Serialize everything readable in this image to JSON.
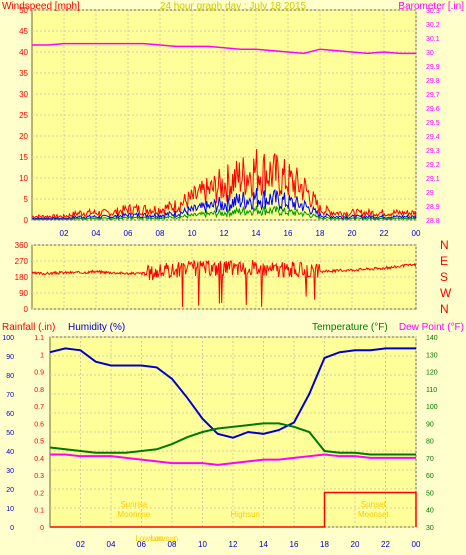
{
  "colors": {
    "background": "#ffffcc",
    "plot_bg": "#ffff99",
    "frame": "#6b6b3a",
    "grid": "#d8c8a8",
    "windspeed": "#ff0000",
    "barometer": "#ff00ff",
    "title": "#cccc00",
    "humidity": "#0000cc",
    "temperature": "#007700",
    "dewpoint": "#ff00ff",
    "rainfall": "#ff0000",
    "annotation": "#ffcc00"
  },
  "chart_data": [
    {
      "type": "line",
      "title": "24 hour graph day : July 18 2015",
      "ylabel_left": "Windspeed [mph]",
      "ylabel_right": "Barometer [.in]",
      "ylim_left": [
        0,
        50
      ],
      "yticks_left": [
        "0",
        "5",
        "10",
        "15",
        "20",
        "25",
        "30",
        "35",
        "40",
        "45",
        "50"
      ],
      "ylim_right": [
        28.8,
        30.3
      ],
      "yticks_right": [
        "28.8",
        "28.9",
        "29",
        "29.1",
        "29.2",
        "29.3",
        "29.4",
        "29.5",
        "29.6",
        "29.7",
        "29.8",
        "29.9",
        "30",
        "30.1",
        "30.2",
        "30.3"
      ],
      "xticks": [
        "02",
        "04",
        "06",
        "08",
        "10",
        "12",
        "14",
        "16",
        "18",
        "20",
        "22",
        "00"
      ],
      "x_hours": [
        0,
        1,
        2,
        3,
        4,
        5,
        6,
        7,
        8,
        9,
        10,
        11,
        12,
        13,
        14,
        15,
        16,
        17,
        18,
        19,
        20,
        21,
        22,
        23,
        24
      ],
      "series": [
        {
          "name": "Windspeed",
          "values": [
            1,
            1,
            1,
            2,
            2,
            2,
            3,
            3,
            3,
            4,
            6,
            8,
            10,
            12,
            14,
            13,
            11,
            9,
            3,
            2,
            2,
            2,
            2,
            2,
            2
          ]
        },
        {
          "name": "Barometer",
          "values": [
            30.05,
            30.05,
            30.06,
            30.06,
            30.06,
            30.06,
            30.06,
            30.06,
            30.05,
            30.04,
            30.04,
            30.04,
            30.03,
            30.02,
            30.02,
            30.01,
            30.0,
            29.99,
            30.02,
            30.01,
            30.0,
            29.99,
            30.0,
            29.99,
            29.99
          ]
        }
      ],
      "grid": true
    },
    {
      "type": "scatter",
      "series_name": "Wind Direction",
      "ylim": [
        0,
        360
      ],
      "yticks": [
        "0",
        "90",
        "180",
        "270",
        "360"
      ],
      "compass": [
        "N",
        "W",
        "S",
        "E",
        "N"
      ],
      "x_hours": [
        0,
        1,
        2,
        3,
        4,
        5,
        6,
        7,
        8,
        9,
        10,
        11,
        12,
        13,
        14,
        15,
        16,
        17,
        18,
        19,
        20,
        21,
        22,
        23,
        24
      ],
      "values": [
        200,
        200,
        205,
        205,
        210,
        205,
        200,
        200,
        210,
        220,
        230,
        230,
        230,
        230,
        230,
        225,
        220,
        220,
        210,
        215,
        220,
        225,
        230,
        240,
        250
      ],
      "grid": true
    },
    {
      "type": "line",
      "ylabel_left_1": "Rainfall (.in)",
      "ylabel_left_2": "Humidity (%)",
      "ylabel_right_1": "Temperature (°F)",
      "ylabel_right_2": "Dew Point (°F)",
      "ylim_rain": [
        0,
        1.1
      ],
      "yticks_rain": [
        "0",
        "0.1",
        "0.2",
        "0.3",
        "0.4",
        "0.5",
        "0.6",
        "0.7",
        "0.8",
        "0.9",
        "1",
        "1.1"
      ],
      "ylim_humidity": [
        0,
        100
      ],
      "yticks_humidity": [
        "0",
        "10",
        "20",
        "30",
        "40",
        "50",
        "60",
        "70",
        "80",
        "90",
        "100"
      ],
      "ylim_temp": [
        30,
        140
      ],
      "yticks_temp": [
        "30",
        "40",
        "50",
        "60",
        "70",
        "80",
        "90",
        "100",
        "110",
        "120",
        "130",
        "140"
      ],
      "xticks": [
        "02",
        "04",
        "06",
        "08",
        "10",
        "12",
        "14",
        "16",
        "18",
        "20",
        "22",
        "00"
      ],
      "x_hours": [
        0,
        1,
        2,
        3,
        4,
        5,
        6,
        7,
        8,
        9,
        10,
        11,
        12,
        13,
        14,
        15,
        16,
        17,
        18,
        19,
        20,
        21,
        22,
        23,
        24
      ],
      "series": [
        {
          "name": "Humidity",
          "values": [
            92,
            94,
            93,
            87,
            85,
            85,
            85,
            84,
            78,
            68,
            57,
            49,
            47,
            50,
            49,
            51,
            55,
            70,
            89,
            92,
            93,
            93,
            94,
            94,
            94
          ]
        },
        {
          "name": "Temperature",
          "values": [
            76,
            75,
            74,
            73,
            73,
            73,
            74,
            75,
            78,
            82,
            85,
            87,
            88,
            89,
            90,
            90,
            88,
            85,
            74,
            73,
            73,
            72,
            72,
            72,
            72
          ]
        },
        {
          "name": "Dew Point",
          "values": [
            72,
            72,
            71,
            71,
            71,
            70,
            69,
            68,
            67,
            67,
            67,
            66,
            67,
            68,
            69,
            69,
            70,
            71,
            72,
            71,
            71,
            70,
            70,
            70,
            70
          ]
        },
        {
          "name": "Rainfall",
          "values": [
            0,
            0,
            0,
            0,
            0,
            0,
            0,
            0,
            0,
            0,
            0,
            0,
            0,
            0,
            0,
            0,
            0,
            0,
            0.2,
            0.2,
            0.2,
            0.2,
            0.2,
            0.2,
            0
          ]
        }
      ],
      "annotations": [
        "Sunrise",
        "Moonrise",
        "Highsun",
        "Sunset",
        "Moonset",
        "Lowsun",
        "Lowsun"
      ],
      "grid": true
    }
  ]
}
